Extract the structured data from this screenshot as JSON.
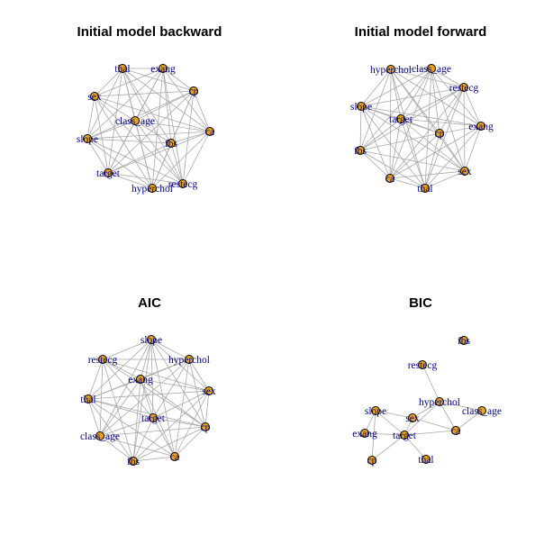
{
  "colors": {
    "node_fill": "#e8a317",
    "node_stroke": "#000000",
    "edge": "#a8a8a8",
    "label": "#00008b",
    "title": "#000000"
  },
  "panels": [
    {
      "id": "initial-backward",
      "title": "Initial model backward",
      "nodes": [
        "thal",
        "exang",
        "sex",
        "cp",
        "class_age",
        "slope",
        "ca",
        "fbs",
        "target",
        "hyperchol",
        "restecg"
      ],
      "edges": [
        [
          "thal",
          "exang"
        ],
        [
          "thal",
          "sex"
        ],
        [
          "thal",
          "cp"
        ],
        [
          "thal",
          "class_age"
        ],
        [
          "thal",
          "slope"
        ],
        [
          "thal",
          "ca"
        ],
        [
          "thal",
          "fbs"
        ],
        [
          "thal",
          "target"
        ],
        [
          "thal",
          "hyperchol"
        ],
        [
          "thal",
          "restecg"
        ],
        [
          "exang",
          "sex"
        ],
        [
          "exang",
          "cp"
        ],
        [
          "exang",
          "class_age"
        ],
        [
          "exang",
          "slope"
        ],
        [
          "exang",
          "ca"
        ],
        [
          "exang",
          "fbs"
        ],
        [
          "exang",
          "target"
        ],
        [
          "exang",
          "hyperchol"
        ],
        [
          "exang",
          "restecg"
        ],
        [
          "sex",
          "cp"
        ],
        [
          "sex",
          "class_age"
        ],
        [
          "sex",
          "slope"
        ],
        [
          "sex",
          "ca"
        ],
        [
          "sex",
          "target"
        ],
        [
          "sex",
          "hyperchol"
        ],
        [
          "sex",
          "restecg"
        ],
        [
          "cp",
          "class_age"
        ],
        [
          "cp",
          "slope"
        ],
        [
          "cp",
          "ca"
        ],
        [
          "cp",
          "fbs"
        ],
        [
          "cp",
          "target"
        ],
        [
          "cp",
          "hyperchol"
        ],
        [
          "cp",
          "restecg"
        ],
        [
          "class_age",
          "slope"
        ],
        [
          "class_age",
          "ca"
        ],
        [
          "class_age",
          "fbs"
        ],
        [
          "class_age",
          "target"
        ],
        [
          "class_age",
          "hyperchol"
        ],
        [
          "class_age",
          "restecg"
        ],
        [
          "slope",
          "ca"
        ],
        [
          "slope",
          "fbs"
        ],
        [
          "slope",
          "target"
        ],
        [
          "slope",
          "hyperchol"
        ],
        [
          "slope",
          "restecg"
        ],
        [
          "ca",
          "fbs"
        ],
        [
          "ca",
          "target"
        ],
        [
          "ca",
          "hyperchol"
        ],
        [
          "ca",
          "restecg"
        ],
        [
          "fbs",
          "target"
        ],
        [
          "fbs",
          "hyperchol"
        ],
        [
          "fbs",
          "restecg"
        ],
        [
          "target",
          "hyperchol"
        ],
        [
          "target",
          "restecg"
        ],
        [
          "hyperchol",
          "restecg"
        ]
      ]
    },
    {
      "id": "initial-forward",
      "title": "Initial model forward",
      "nodes": [
        "hyperchol",
        "class_age",
        "restecg",
        "slope",
        "target",
        "cp",
        "exang",
        "fbs",
        "sex",
        "ca",
        "thal"
      ],
      "edges": [
        [
          "hyperchol",
          "class_age"
        ],
        [
          "hyperchol",
          "restecg"
        ],
        [
          "hyperchol",
          "slope"
        ],
        [
          "hyperchol",
          "target"
        ],
        [
          "hyperchol",
          "cp"
        ],
        [
          "hyperchol",
          "exang"
        ],
        [
          "hyperchol",
          "fbs"
        ],
        [
          "hyperchol",
          "sex"
        ],
        [
          "hyperchol",
          "ca"
        ],
        [
          "hyperchol",
          "thal"
        ],
        [
          "class_age",
          "restecg"
        ],
        [
          "class_age",
          "slope"
        ],
        [
          "class_age",
          "target"
        ],
        [
          "class_age",
          "cp"
        ],
        [
          "class_age",
          "exang"
        ],
        [
          "class_age",
          "fbs"
        ],
        [
          "class_age",
          "sex"
        ],
        [
          "class_age",
          "ca"
        ],
        [
          "class_age",
          "thal"
        ],
        [
          "restecg",
          "slope"
        ],
        [
          "restecg",
          "target"
        ],
        [
          "restecg",
          "cp"
        ],
        [
          "restecg",
          "exang"
        ],
        [
          "restecg",
          "fbs"
        ],
        [
          "restecg",
          "sex"
        ],
        [
          "restecg",
          "ca"
        ],
        [
          "restecg",
          "thal"
        ],
        [
          "slope",
          "target"
        ],
        [
          "slope",
          "cp"
        ],
        [
          "slope",
          "exang"
        ],
        [
          "slope",
          "fbs"
        ],
        [
          "slope",
          "sex"
        ],
        [
          "slope",
          "ca"
        ],
        [
          "slope",
          "thal"
        ],
        [
          "target",
          "cp"
        ],
        [
          "target",
          "exang"
        ],
        [
          "target",
          "fbs"
        ],
        [
          "target",
          "sex"
        ],
        [
          "target",
          "ca"
        ],
        [
          "target",
          "thal"
        ],
        [
          "cp",
          "exang"
        ],
        [
          "cp",
          "fbs"
        ],
        [
          "cp",
          "sex"
        ],
        [
          "cp",
          "ca"
        ],
        [
          "cp",
          "thal"
        ],
        [
          "exang",
          "sex"
        ],
        [
          "exang",
          "ca"
        ],
        [
          "exang",
          "thal"
        ],
        [
          "fbs",
          "sex"
        ],
        [
          "fbs",
          "ca"
        ],
        [
          "fbs",
          "thal"
        ],
        [
          "sex",
          "ca"
        ],
        [
          "sex",
          "thal"
        ],
        [
          "ca",
          "thal"
        ]
      ]
    },
    {
      "id": "aic",
      "title": "AIC",
      "nodes": [
        "slope",
        "restecg",
        "hyperchol",
        "exang",
        "sex",
        "thal",
        "target",
        "class_age",
        "cp",
        "fbs",
        "ca"
      ],
      "edges": [
        [
          "slope",
          "restecg"
        ],
        [
          "slope",
          "hyperchol"
        ],
        [
          "slope",
          "exang"
        ],
        [
          "slope",
          "sex"
        ],
        [
          "slope",
          "thal"
        ],
        [
          "slope",
          "target"
        ],
        [
          "slope",
          "class_age"
        ],
        [
          "slope",
          "cp"
        ],
        [
          "slope",
          "fbs"
        ],
        [
          "slope",
          "ca"
        ],
        [
          "restecg",
          "hyperchol"
        ],
        [
          "restecg",
          "exang"
        ],
        [
          "restecg",
          "sex"
        ],
        [
          "restecg",
          "thal"
        ],
        [
          "restecg",
          "target"
        ],
        [
          "restecg",
          "class_age"
        ],
        [
          "restecg",
          "cp"
        ],
        [
          "restecg",
          "fbs"
        ],
        [
          "hyperchol",
          "exang"
        ],
        [
          "hyperchol",
          "sex"
        ],
        [
          "hyperchol",
          "thal"
        ],
        [
          "hyperchol",
          "target"
        ],
        [
          "hyperchol",
          "class_age"
        ],
        [
          "hyperchol",
          "cp"
        ],
        [
          "hyperchol",
          "ca"
        ],
        [
          "exang",
          "sex"
        ],
        [
          "exang",
          "thal"
        ],
        [
          "exang",
          "target"
        ],
        [
          "exang",
          "class_age"
        ],
        [
          "exang",
          "cp"
        ],
        [
          "exang",
          "fbs"
        ],
        [
          "exang",
          "ca"
        ],
        [
          "sex",
          "thal"
        ],
        [
          "sex",
          "target"
        ],
        [
          "sex",
          "cp"
        ],
        [
          "sex",
          "fbs"
        ],
        [
          "sex",
          "ca"
        ],
        [
          "thal",
          "target"
        ],
        [
          "thal",
          "class_age"
        ],
        [
          "thal",
          "cp"
        ],
        [
          "thal",
          "fbs"
        ],
        [
          "thal",
          "ca"
        ],
        [
          "target",
          "class_age"
        ],
        [
          "target",
          "cp"
        ],
        [
          "target",
          "fbs"
        ],
        [
          "target",
          "ca"
        ],
        [
          "class_age",
          "cp"
        ],
        [
          "class_age",
          "fbs"
        ],
        [
          "class_age",
          "ca"
        ],
        [
          "cp",
          "fbs"
        ],
        [
          "cp",
          "ca"
        ],
        [
          "fbs",
          "ca"
        ]
      ]
    },
    {
      "id": "bic",
      "title": "BIC",
      "nodes": [
        "fbs",
        "restecg",
        "hyperchol",
        "slope",
        "sex",
        "class_age",
        "exang",
        "target",
        "ca",
        "cp",
        "thal"
      ],
      "edges": [
        [
          "restecg",
          "hyperchol"
        ],
        [
          "hyperchol",
          "sex"
        ],
        [
          "hyperchol",
          "target"
        ],
        [
          "hyperchol",
          "ca"
        ],
        [
          "hyperchol",
          "class_age"
        ],
        [
          "class_age",
          "ca"
        ],
        [
          "slope",
          "sex"
        ],
        [
          "slope",
          "target"
        ],
        [
          "slope",
          "exang"
        ],
        [
          "slope",
          "cp"
        ],
        [
          "sex",
          "target"
        ],
        [
          "sex",
          "ca"
        ],
        [
          "exang",
          "target"
        ],
        [
          "target",
          "ca"
        ],
        [
          "target",
          "thal"
        ],
        [
          "target",
          "cp"
        ]
      ]
    }
  ]
}
